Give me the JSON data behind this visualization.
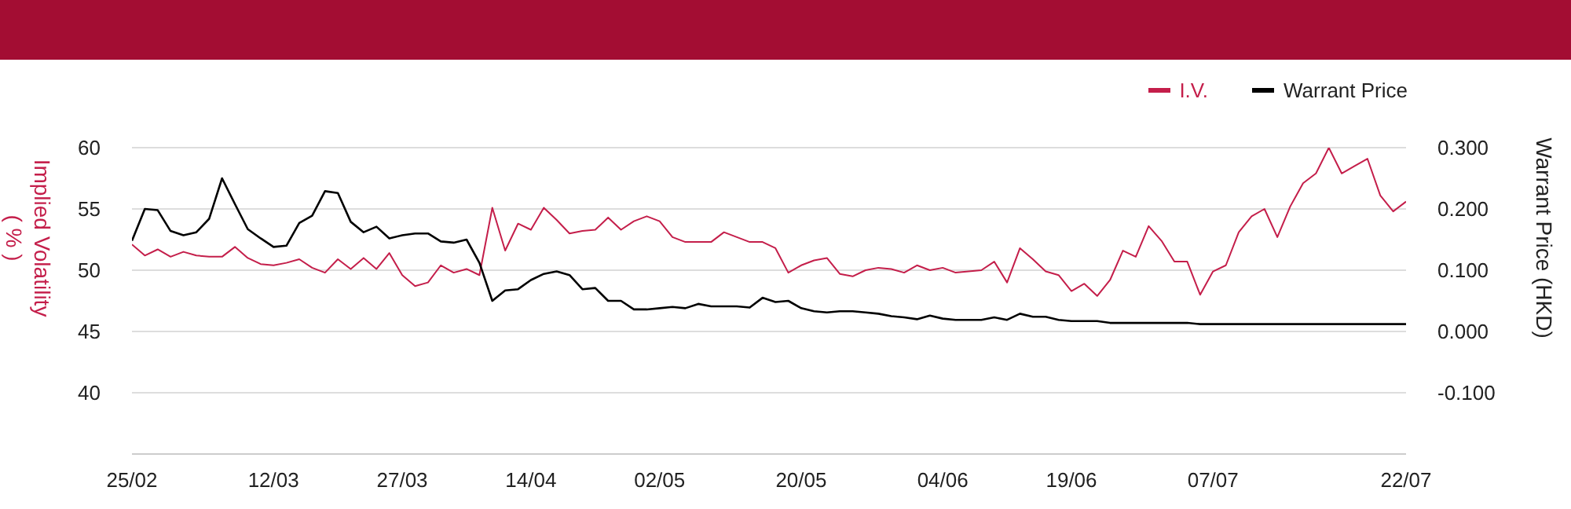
{
  "chart_data": {
    "type": "line",
    "categories": [
      "25/02",
      null,
      null,
      null,
      null,
      null,
      null,
      null,
      null,
      null,
      null,
      "12/03",
      null,
      null,
      null,
      null,
      null,
      null,
      null,
      null,
      null,
      "27/03",
      null,
      null,
      null,
      null,
      null,
      null,
      null,
      null,
      null,
      "14/04",
      null,
      null,
      null,
      null,
      null,
      null,
      null,
      null,
      null,
      "02/05",
      null,
      null,
      null,
      null,
      null,
      null,
      null,
      null,
      null,
      null,
      "20/05",
      null,
      null,
      null,
      null,
      null,
      null,
      null,
      null,
      null,
      null,
      "04/06",
      null,
      null,
      null,
      null,
      null,
      null,
      null,
      null,
      null,
      "19/06",
      null,
      null,
      null,
      null,
      null,
      null,
      null,
      null,
      null,
      null,
      "07/07",
      null,
      null,
      null,
      null,
      null,
      null,
      null,
      null,
      null,
      null,
      null,
      null,
      null,
      null,
      "22/07"
    ],
    "series": [
      {
        "name": "I.V.",
        "color": "#c41e4a",
        "values": [
          52.1,
          51.2,
          51.7,
          51.1,
          51.5,
          51.2,
          51.1,
          51.1,
          51.9,
          51.0,
          50.5,
          50.4,
          50.6,
          50.9,
          50.2,
          49.8,
          50.9,
          50.1,
          51.0,
          50.1,
          51.4,
          49.6,
          48.7,
          49.0,
          50.4,
          49.8,
          50.1,
          49.6,
          55.1,
          51.6,
          53.8,
          53.3,
          55.1,
          54.1,
          53.0,
          53.2,
          53.3,
          54.3,
          53.3,
          54.0,
          54.4,
          54.0,
          52.7,
          52.3,
          52.3,
          52.3,
          53.1,
          52.7,
          52.3,
          52.3,
          51.8,
          49.8,
          50.4,
          50.8,
          51.0,
          49.7,
          49.5,
          50.0,
          50.2,
          50.1,
          49.8,
          50.4,
          50.0,
          50.2,
          49.8,
          49.9,
          50.0,
          50.7,
          49.0,
          51.8,
          50.9,
          49.9,
          49.6,
          48.3,
          48.9,
          47.9,
          49.2,
          51.6,
          51.1,
          53.6,
          52.4,
          50.7,
          50.7,
          48.0,
          49.9,
          50.4,
          53.1,
          54.4,
          55.0,
          52.7,
          55.2,
          57.1,
          57.9,
          60.0,
          57.9,
          58.5,
          59.1,
          56.1,
          54.8,
          55.6
        ]
      },
      {
        "name": "Warrant Price",
        "color": "#000000",
        "axis": "y2",
        "values": [
          0.148,
          0.2,
          0.198,
          0.164,
          0.157,
          0.162,
          0.184,
          0.25,
          0.208,
          0.167,
          0.152,
          0.138,
          0.14,
          0.177,
          0.189,
          0.229,
          0.226,
          0.179,
          0.162,
          0.171,
          0.152,
          0.157,
          0.16,
          0.16,
          0.147,
          0.145,
          0.15,
          0.112,
          0.05,
          0.067,
          0.069,
          0.084,
          0.094,
          0.098,
          0.092,
          0.069,
          0.071,
          0.05,
          0.05,
          0.036,
          0.036,
          0.038,
          0.04,
          0.038,
          0.045,
          0.041,
          0.041,
          0.041,
          0.039,
          0.055,
          0.048,
          0.05,
          0.038,
          0.033,
          0.031,
          0.033,
          0.033,
          0.031,
          0.029,
          0.025,
          0.023,
          0.02,
          0.026,
          0.021,
          0.019,
          0.019,
          0.019,
          0.023,
          0.019,
          0.029,
          0.024,
          0.024,
          0.019,
          0.017,
          0.017,
          0.017,
          0.014,
          0.014,
          0.014,
          0.014,
          0.014,
          0.014,
          0.014,
          0.012,
          0.012,
          0.012,
          0.012,
          0.012,
          0.012,
          0.012,
          0.012,
          0.012,
          0.012,
          0.012,
          0.012,
          0.012,
          0.012,
          0.012,
          0.012,
          0.012
        ]
      }
    ],
    "ylabel": "Implied Volatility\n( % )",
    "y2label": "Warrant Price (HKD)",
    "ylim": [
      35,
      60
    ],
    "yticks": [
      40,
      45,
      50,
      55,
      60
    ],
    "y2lim": [
      -0.2,
      0.3
    ],
    "y2ticks": [
      {
        "value": -0.1,
        "label": "-0.100"
      },
      {
        "value": 0,
        "label": "0.000"
      },
      {
        "value": 0.1,
        "label": "0.100"
      },
      {
        "value": 0.2,
        "label": "0.200"
      },
      {
        "value": 0.3,
        "label": "0.300"
      }
    ],
    "grid": "y",
    "legend": "top right",
    "marker": "none",
    "line_style": "solid"
  }
}
